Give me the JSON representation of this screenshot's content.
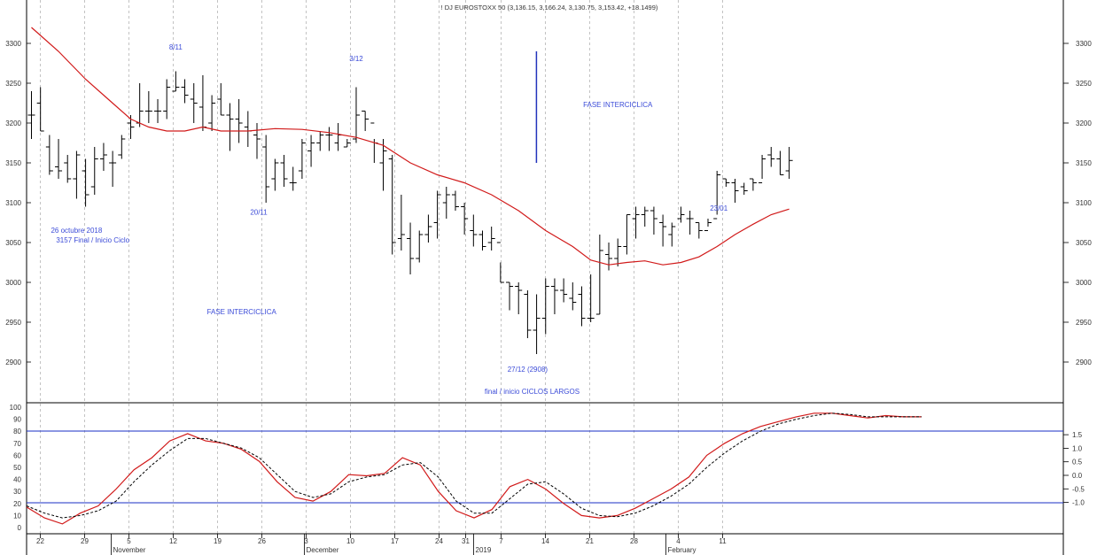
{
  "chart_data": {
    "type": "candlestick",
    "title": "! DJ EUROSTOXX 50 (3,136.15, 3,166.24, 3,130.75, 3,153.42, +18.1499)",
    "price_ticks": [
      2900,
      2950,
      3000,
      3050,
      3100,
      3150,
      3200,
      3250,
      3300
    ],
    "osc_ticks_left": [
      "0",
      "10",
      "20",
      "30",
      "40",
      "50",
      "60",
      "70",
      "80",
      "90",
      "100"
    ],
    "osc_ticks_right": [
      "-1.0",
      "-0.5",
      "0.0",
      "0.5",
      "1.0",
      "1.5"
    ],
    "ylim_price": [
      2850,
      3350
    ],
    "ylim_osc": [
      0,
      100
    ],
    "osc_hlines": [
      20,
      80
    ],
    "date_ticks": [
      {
        "i": 1,
        "label": "22"
      },
      {
        "i": 6,
        "label": "29"
      },
      {
        "i": 11,
        "label": "5"
      },
      {
        "i": 16,
        "label": "12"
      },
      {
        "i": 21,
        "label": "19"
      },
      {
        "i": 26,
        "label": "26"
      },
      {
        "i": 31,
        "label": "3"
      },
      {
        "i": 36,
        "label": "10"
      },
      {
        "i": 41,
        "label": "17"
      },
      {
        "i": 46,
        "label": "24"
      },
      {
        "i": 49,
        "label": "31"
      },
      {
        "i": 53,
        "label": "7"
      },
      {
        "i": 58,
        "label": "14"
      },
      {
        "i": 63,
        "label": "21"
      },
      {
        "i": 68,
        "label": "28"
      },
      {
        "i": 73,
        "label": "4"
      },
      {
        "i": 78,
        "label": "11"
      }
    ],
    "month_labels": [
      {
        "i": 9,
        "label": "November"
      },
      {
        "i": 30.8,
        "label": "December"
      },
      {
        "i": 49.9,
        "label": "2019"
      },
      {
        "i": 71.6,
        "label": "February"
      }
    ],
    "bars": [
      [
        3210,
        3240,
        3180,
        3210
      ],
      [
        3225,
        3245,
        3190,
        3190
      ],
      [
        3170,
        3185,
        3135,
        3140
      ],
      [
        3145,
        3180,
        3130,
        3140
      ],
      [
        3150,
        3160,
        3125,
        3130
      ],
      [
        3130,
        3165,
        3105,
        3160
      ],
      [
        3140,
        3155,
        3095,
        3110
      ],
      [
        3120,
        3170,
        3110,
        3155
      ],
      [
        3155,
        3175,
        3140,
        3160
      ],
      [
        3150,
        3165,
        3120,
        3150
      ],
      [
        3160,
        3185,
        3155,
        3180
      ],
      [
        3200,
        3210,
        3180,
        3195
      ],
      [
        3200,
        3250,
        3195,
        3215
      ],
      [
        3215,
        3240,
        3200,
        3215
      ],
      [
        3215,
        3230,
        3200,
        3215
      ],
      [
        3215,
        3255,
        3205,
        3245
      ],
      [
        3240,
        3265,
        3240,
        3245
      ],
      [
        3245,
        3255,
        3225,
        3235
      ],
      [
        3230,
        3250,
        3200,
        3225
      ],
      [
        3220,
        3260,
        3190,
        3195
      ],
      [
        3200,
        3235,
        3190,
        3225
      ],
      [
        3230,
        3250,
        3210,
        3210
      ],
      [
        3210,
        3225,
        3165,
        3205
      ],
      [
        3205,
        3230,
        3175,
        3200
      ],
      [
        3195,
        3215,
        3170,
        3190
      ],
      [
        3185,
        3200,
        3155,
        3180
      ],
      [
        3170,
        3185,
        3100,
        3120
      ],
      [
        3130,
        3155,
        3115,
        3150
      ],
      [
        3150,
        3160,
        3120,
        3130
      ],
      [
        3125,
        3145,
        3115,
        3125
      ],
      [
        3140,
        3180,
        3130,
        3175
      ],
      [
        3165,
        3185,
        3145,
        3175
      ],
      [
        3175,
        3190,
        3165,
        3185
      ],
      [
        3185,
        3195,
        3165,
        3185
      ],
      [
        3175,
        3200,
        3165,
        3185
      ],
      [
        3170,
        3180,
        3170,
        3175
      ],
      [
        3180,
        3245,
        3175,
        3210
      ],
      [
        3215,
        3215,
        3190,
        3205
      ],
      [
        3200,
        3180,
        3150,
        3175
      ],
      [
        3150,
        3180,
        3115,
        3165
      ],
      [
        3155,
        3160,
        3035,
        3050
      ],
      [
        3055,
        3110,
        3040,
        3060
      ],
      [
        3055,
        3075,
        3010,
        3030
      ],
      [
        3030,
        3065,
        3025,
        3060
      ],
      [
        3060,
        3085,
        3050,
        3070
      ],
      [
        3075,
        3115,
        3055,
        3110
      ],
      [
        3100,
        3120,
        3080,
        3110
      ],
      [
        3110,
        3115,
        3090,
        3095
      ],
      [
        3095,
        3100,
        3060,
        3080
      ],
      [
        3065,
        3085,
        3045,
        3060
      ],
      [
        3060,
        3065,
        3040,
        3045
      ],
      [
        3050,
        3070,
        3040,
        3055
      ],
      [
        3050,
        3025,
        3000,
        3000
      ],
      [
        3000,
        3000,
        2965,
        2995
      ],
      [
        2995,
        3000,
        2960,
        2990
      ],
      [
        2985,
        2990,
        2930,
        2940
      ],
      [
        2940,
        2985,
        2910,
        2955
      ],
      [
        2955,
        3005,
        2935,
        2995
      ],
      [
        2995,
        3005,
        2960,
        2990
      ],
      [
        2990,
        3005,
        2975,
        2985
      ],
      [
        2980,
        3000,
        2965,
        2975
      ],
      [
        2985,
        2995,
        2945,
        2955
      ],
      [
        2955,
        3010,
        2950,
        2955
      ],
      [
        2960,
        3060,
        2960,
        3040
      ],
      [
        3035,
        3050,
        3015,
        3030
      ],
      [
        3030,
        3055,
        3020,
        3045
      ],
      [
        3045,
        3085,
        3035,
        3085
      ],
      [
        3080,
        3095,
        3055,
        3085
      ],
      [
        3085,
        3095,
        3070,
        3090
      ],
      [
        3090,
        3095,
        3060,
        3080
      ],
      [
        3075,
        3085,
        3045,
        3070
      ],
      [
        3060,
        3075,
        3045,
        3070
      ],
      [
        3080,
        3095,
        3075,
        3085
      ],
      [
        3080,
        3090,
        3060,
        3080
      ],
      [
        3075,
        3075,
        3055,
        3065
      ],
      [
        3065,
        3080,
        3070,
        3075
      ],
      [
        3080,
        3140,
        3085,
        3135
      ],
      [
        3130,
        3130,
        3120,
        3125
      ],
      [
        3125,
        3130,
        3100,
        3115
      ],
      [
        3120,
        3125,
        3110,
        3115
      ],
      [
        3130,
        3130,
        3115,
        3125
      ],
      [
        3125,
        3160,
        3130,
        3155
      ],
      [
        3160,
        3170,
        3145,
        3155
      ],
      [
        3155,
        3165,
        3135,
        3135
      ],
      [
        3140,
        3170,
        3130,
        3153
      ]
    ],
    "ma_points": [
      [
        0,
        3320
      ],
      [
        3,
        3290
      ],
      [
        6,
        3255
      ],
      [
        9,
        3225
      ],
      [
        11,
        3205
      ],
      [
        13,
        3195
      ],
      [
        15,
        3190
      ],
      [
        17,
        3190
      ],
      [
        19,
        3195
      ],
      [
        21,
        3190
      ],
      [
        24,
        3190
      ],
      [
        27,
        3193
      ],
      [
        30,
        3192
      ],
      [
        33,
        3188
      ],
      [
        36,
        3182
      ],
      [
        39,
        3172
      ],
      [
        42,
        3150
      ],
      [
        45,
        3135
      ],
      [
        48,
        3125
      ],
      [
        51,
        3110
      ],
      [
        54,
        3090
      ],
      [
        57,
        3065
      ],
      [
        60,
        3045
      ],
      [
        62,
        3028
      ],
      [
        64,
        3022
      ],
      [
        66,
        3025
      ],
      [
        68,
        3027
      ],
      [
        70,
        3022
      ],
      [
        72,
        3025
      ],
      [
        74,
        3032
      ],
      [
        76,
        3045
      ],
      [
        78,
        3060
      ],
      [
        80,
        3073
      ],
      [
        82,
        3085
      ],
      [
        84,
        3092
      ]
    ],
    "osc_k": [
      [
        0,
        17
      ],
      [
        3,
        8
      ],
      [
        6,
        3
      ],
      [
        9,
        12
      ],
      [
        12,
        18
      ],
      [
        15,
        32
      ],
      [
        18,
        48
      ],
      [
        21,
        58
      ],
      [
        24,
        72
      ],
      [
        27,
        78
      ],
      [
        30,
        72
      ],
      [
        33,
        70
      ],
      [
        36,
        65
      ],
      [
        39,
        55
      ],
      [
        42,
        38
      ],
      [
        45,
        25
      ],
      [
        48,
        22
      ],
      [
        51,
        30
      ],
      [
        54,
        44
      ],
      [
        57,
        43
      ],
      [
        60,
        45
      ],
      [
        63,
        58
      ],
      [
        66,
        52
      ],
      [
        69,
        30
      ],
      [
        72,
        14
      ],
      [
        75,
        8
      ],
      [
        78,
        15
      ],
      [
        81,
        34
      ],
      [
        84,
        40
      ],
      [
        87,
        32
      ],
      [
        90,
        20
      ],
      [
        93,
        10
      ],
      [
        96,
        8
      ],
      [
        99,
        10
      ],
      [
        102,
        16
      ],
      [
        105,
        24
      ],
      [
        108,
        32
      ],
      [
        111,
        42
      ],
      [
        114,
        60
      ],
      [
        117,
        70
      ],
      [
        120,
        78
      ],
      [
        123,
        84
      ],
      [
        126,
        88
      ],
      [
        129,
        92
      ],
      [
        132,
        95
      ],
      [
        135,
        95
      ],
      [
        138,
        93
      ],
      [
        141,
        91
      ],
      [
        144,
        93
      ],
      [
        147,
        92
      ],
      [
        150,
        92
      ]
    ],
    "osc_d": [
      [
        0,
        18
      ],
      [
        3,
        12
      ],
      [
        6,
        8
      ],
      [
        9,
        10
      ],
      [
        12,
        14
      ],
      [
        15,
        22
      ],
      [
        18,
        38
      ],
      [
        21,
        52
      ],
      [
        24,
        64
      ],
      [
        27,
        74
      ],
      [
        30,
        74
      ],
      [
        33,
        70
      ],
      [
        36,
        66
      ],
      [
        39,
        58
      ],
      [
        42,
        44
      ],
      [
        45,
        30
      ],
      [
        48,
        25
      ],
      [
        51,
        28
      ],
      [
        54,
        38
      ],
      [
        57,
        42
      ],
      [
        60,
        44
      ],
      [
        63,
        52
      ],
      [
        66,
        54
      ],
      [
        69,
        42
      ],
      [
        72,
        22
      ],
      [
        75,
        12
      ],
      [
        78,
        12
      ],
      [
        81,
        24
      ],
      [
        84,
        36
      ],
      [
        87,
        38
      ],
      [
        90,
        28
      ],
      [
        93,
        16
      ],
      [
        96,
        10
      ],
      [
        99,
        9
      ],
      [
        102,
        12
      ],
      [
        105,
        18
      ],
      [
        108,
        26
      ],
      [
        111,
        36
      ],
      [
        114,
        50
      ],
      [
        117,
        62
      ],
      [
        120,
        72
      ],
      [
        123,
        80
      ],
      [
        126,
        86
      ],
      [
        129,
        90
      ],
      [
        132,
        93
      ],
      [
        135,
        95
      ],
      [
        138,
        94
      ],
      [
        141,
        92
      ],
      [
        144,
        92
      ],
      [
        147,
        92
      ],
      [
        150,
        92
      ]
    ],
    "annotations": [
      {
        "text": "8/11",
        "i": 16,
        "p": 3292
      },
      {
        "text": "3/12",
        "i": 36,
        "p": 3278
      },
      {
        "text": "FASE INTERCICLICA",
        "i": 65,
        "p": 3220
      },
      {
        "text": "26 octubre 2018",
        "i": 5,
        "p": 3062
      },
      {
        "text": "3157 Final / Inicio Ciclo",
        "i": 6.8,
        "p": 3050
      },
      {
        "text": "20/11",
        "i": 25.2,
        "p": 3085
      },
      {
        "text": "23/01",
        "i": 76.2,
        "p": 3090
      },
      {
        "text": "FASE INTERCICLICA",
        "i": 23.3,
        "p": 2960
      },
      {
        "text": "27/12 (2908)",
        "i": 55,
        "p": 2888
      },
      {
        "text": "final / inicio CICLOS LARGOS",
        "i": 55.5,
        "p": 2860
      }
    ],
    "vertical_marker": {
      "i": 55,
      "p_top": 3290,
      "p_bottom": 3150
    }
  }
}
